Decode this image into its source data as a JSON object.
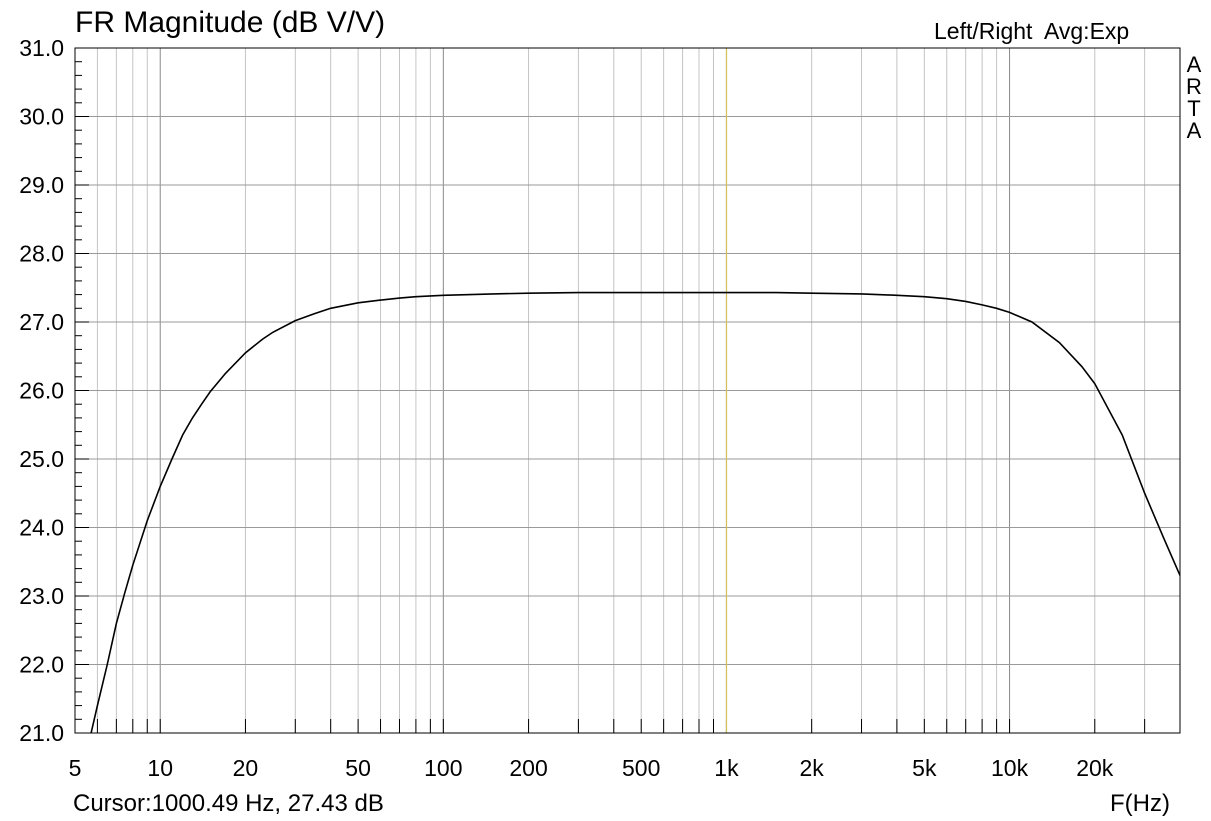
{
  "chart_data": {
    "type": "line",
    "title": "FR Magnitude (dB V/V)",
    "channel_label": "Left/Right",
    "averaging_label": "Avg:Exp",
    "brand": "ARTA",
    "xlabel": "F(Hz)",
    "x_scale": "log",
    "xlim": [
      5,
      40000
    ],
    "ylim": [
      21.0,
      31.0
    ],
    "grid": true,
    "y_ticks": [
      "21.0",
      "22.0",
      "23.0",
      "24.0",
      "25.0",
      "26.0",
      "27.0",
      "28.0",
      "29.0",
      "30.0",
      "31.0"
    ],
    "x_ticks": [
      {
        "value": 5,
        "label": "5"
      },
      {
        "value": 10,
        "label": "10"
      },
      {
        "value": 20,
        "label": "20"
      },
      {
        "value": 50,
        "label": "50"
      },
      {
        "value": 100,
        "label": "100"
      },
      {
        "value": 200,
        "label": "200"
      },
      {
        "value": 500,
        "label": "500"
      },
      {
        "value": 1000,
        "label": "1k"
      },
      {
        "value": 2000,
        "label": "2k"
      },
      {
        "value": 5000,
        "label": "5k"
      },
      {
        "value": 10000,
        "label": "10k"
      },
      {
        "value": 20000,
        "label": "20k"
      }
    ],
    "cursor": {
      "freq": 1000.49,
      "value": 27.43,
      "color": "#d4c25a",
      "readout": "Cursor:1000.49 Hz, 27.43 dB"
    },
    "series": [
      {
        "color": "#000000",
        "x": [
          5.7,
          6,
          6.5,
          7,
          7.5,
          8,
          9,
          10,
          11,
          12,
          13,
          14,
          15,
          17,
          20,
          23,
          25,
          30,
          35,
          40,
          50,
          60,
          70,
          80,
          100,
          150,
          200,
          300,
          500,
          700,
          1000,
          1500,
          2000,
          3000,
          4000,
          5000,
          6000,
          7000,
          8000,
          9000,
          10000,
          12000,
          15000,
          18000,
          20000,
          25000,
          30000,
          35000,
          40000
        ],
        "y": [
          21.0,
          21.4,
          22.0,
          22.6,
          23.05,
          23.45,
          24.1,
          24.6,
          25.0,
          25.35,
          25.6,
          25.8,
          25.98,
          26.25,
          26.55,
          26.75,
          26.85,
          27.02,
          27.12,
          27.2,
          27.28,
          27.32,
          27.35,
          27.37,
          27.39,
          27.41,
          27.42,
          27.43,
          27.43,
          27.43,
          27.43,
          27.43,
          27.42,
          27.41,
          27.39,
          27.37,
          27.34,
          27.3,
          27.25,
          27.2,
          27.14,
          27.0,
          26.7,
          26.35,
          26.1,
          25.35,
          24.5,
          23.85,
          23.3
        ]
      }
    ]
  }
}
